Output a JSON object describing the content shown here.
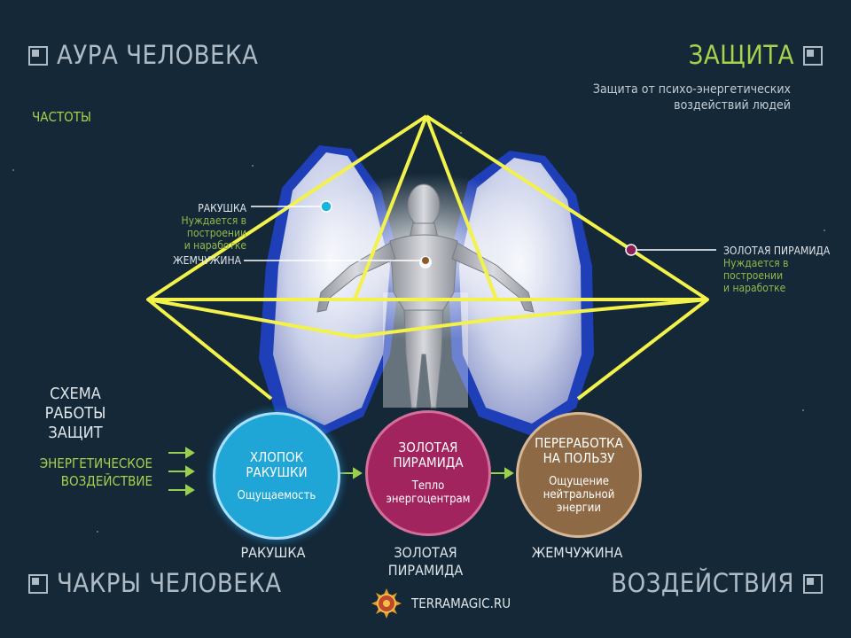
{
  "nav": {
    "aura": "АУРА ЧЕЛОВЕКА",
    "zashita": "ЗАЩИТА",
    "chakry": "ЧАКРЫ ЧЕЛОВЕКА",
    "vozdeystviya": "ВОЗДЕЙСТВИЯ"
  },
  "subtitle": {
    "line1": "Защита от психо-энергетических",
    "line2": "воздействий людей"
  },
  "chastoty": "ЧАСТОТЫ",
  "labels": {
    "rakushka": "РАКУШКА",
    "rakushka_note1": "Нуждается в построении",
    "rakushka_note2": "и наработке",
    "zhemchuzhina": "ЖЕМЧУЖИНА",
    "pyramid": "ЗОЛОТАЯ ПИРАМИДА",
    "pyramid_note1": "Нуждается в построении",
    "pyramid_note2": "и наработке"
  },
  "schema": {
    "line1": "СХЕМА РАБОТЫ",
    "line2": "ЗАЩИТ"
  },
  "energ": {
    "line1": "ЭНЕРГЕТИЧЕСКОЕ",
    "line2": "ВОЗДЕЙСТВИЕ"
  },
  "circles": [
    {
      "title1": "ХЛОПОК",
      "title2": "РАКУШКИ",
      "sub1": "Ощущаемость",
      "sub2": "",
      "sub3": "",
      "color": "#1fa6d6"
    },
    {
      "title1": "ЗОЛОТАЯ",
      "title2": "ПИРАМИДА",
      "sub1": "Тепло",
      "sub2": "энергоцентрам",
      "sub3": "",
      "color": "#a2245e"
    },
    {
      "title1": "ПЕРЕРАБОТКА",
      "title2": "НА ПОЛЬЗУ",
      "sub1": "Ощущение",
      "sub2": "нейтральной",
      "sub3": "энергии",
      "color": "#8d6a45"
    }
  ],
  "circle_labels": {
    "c1": "РАКУШКА",
    "c2_line1": "ЗОЛОТАЯ",
    "c2_line2": "ПИРАМИДА",
    "c3": "ЖЕМЧУЖИНА"
  },
  "logo": "TERRAMAGIC.RU",
  "colors": {
    "background": "#142838",
    "accent_green": "#a8d14c",
    "pyramid_yellow": "#f2f24a",
    "shell_blue": "#1f47c9"
  },
  "icons": [
    "window-icon",
    "arrow-right-icon",
    "dot-marker-icon",
    "human-figure",
    "shell-shape",
    "sun-emblem-icon"
  ]
}
